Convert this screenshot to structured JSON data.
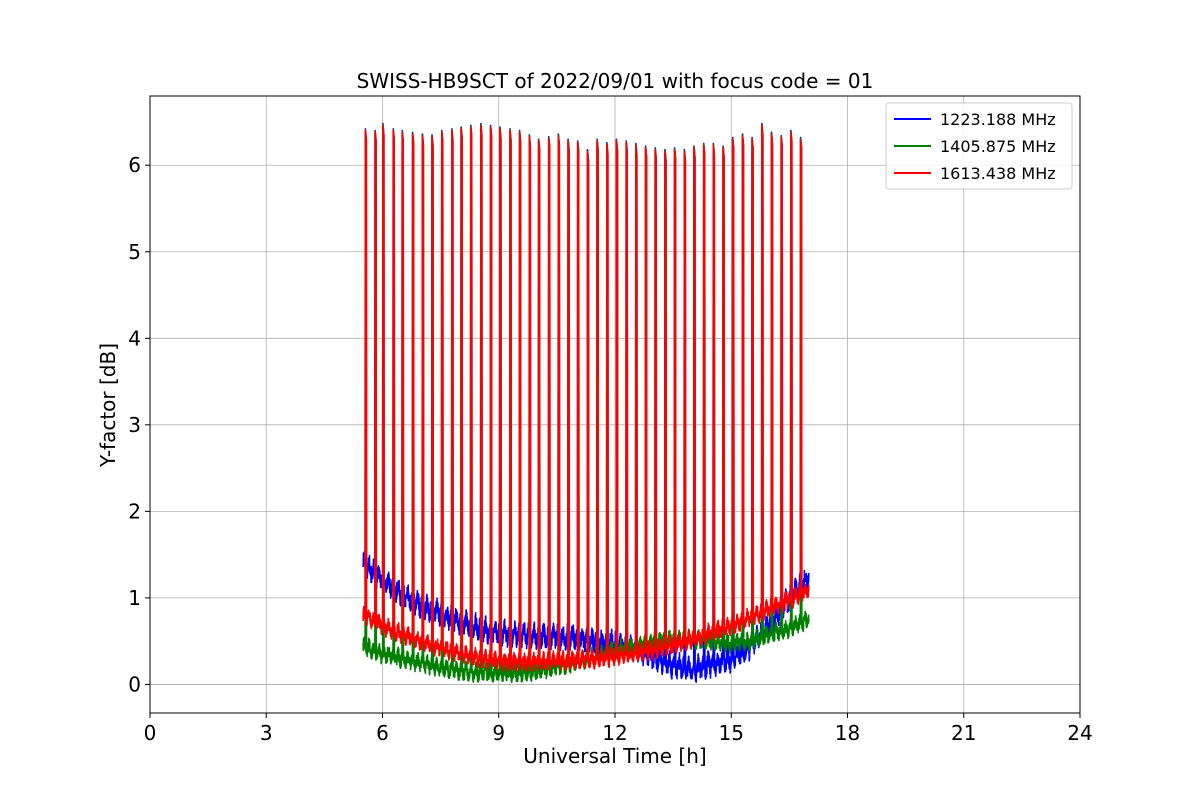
{
  "chart_data": {
    "type": "line",
    "title": "SWISS-HB9SCT of 2022/09/01 with focus code = 01",
    "xlabel": "Universal Time [h]",
    "ylabel": "Y-factor [dB]",
    "xlim": [
      0,
      24
    ],
    "ylim": [
      -0.33,
      6.8
    ],
    "xticks": [
      0,
      3,
      6,
      9,
      12,
      15,
      18,
      21,
      24
    ],
    "yticks": [
      0,
      1,
      2,
      3,
      4,
      5,
      6
    ],
    "xtick_labels": [
      "0",
      "3",
      "6",
      "9",
      "12",
      "15",
      "18",
      "21",
      "24"
    ],
    "ytick_labels": [
      "0",
      "1",
      "2",
      "3",
      "4",
      "5",
      "6"
    ],
    "grid": true,
    "legend_position": "top-right",
    "observation_window": [
      5.5,
      17.0
    ],
    "calibration_pulses": {
      "times": [
        5.55,
        5.8,
        6.0,
        6.27,
        6.5,
        6.77,
        7.02,
        7.27,
        7.52,
        7.78,
        8.02,
        8.27,
        8.53,
        8.78,
        9.02,
        9.28,
        9.53,
        9.78,
        10.02,
        10.28,
        10.53,
        10.78,
        11.03,
        11.28,
        11.53,
        11.78,
        12.03,
        12.28,
        12.53,
        12.78,
        13.03,
        13.28,
        13.53,
        13.78,
        14.03,
        14.28,
        14.53,
        14.78,
        15.03,
        15.28,
        15.53,
        15.78,
        16.03,
        16.28,
        16.53,
        16.78
      ],
      "peaks": [
        6.42,
        6.4,
        6.48,
        6.42,
        6.4,
        6.38,
        6.36,
        6.35,
        6.4,
        6.42,
        6.44,
        6.46,
        6.48,
        6.46,
        6.44,
        6.42,
        6.4,
        6.35,
        6.3,
        6.33,
        6.36,
        6.3,
        6.28,
        6.18,
        6.3,
        6.26,
        6.3,
        6.28,
        6.25,
        6.22,
        6.2,
        6.18,
        6.2,
        6.18,
        6.22,
        6.25,
        6.25,
        6.22,
        6.32,
        6.36,
        6.32,
        6.48,
        6.38,
        6.34,
        6.4,
        6.32
      ]
    },
    "series": [
      {
        "name": "1223.188 MHz",
        "color": "#0000ff",
        "x": [
          5.5,
          6.0,
          6.5,
          7.0,
          7.5,
          8.0,
          8.5,
          9.0,
          9.5,
          10.0,
          10.5,
          11.0,
          11.5,
          12.0,
          12.5,
          13.0,
          13.5,
          14.0,
          14.5,
          15.0,
          15.5,
          16.0,
          16.5,
          17.0
        ],
        "y": [
          1.4,
          1.22,
          1.05,
          0.92,
          0.82,
          0.72,
          0.65,
          0.6,
          0.58,
          0.57,
          0.56,
          0.54,
          0.5,
          0.48,
          0.42,
          0.32,
          0.22,
          0.18,
          0.24,
          0.3,
          0.44,
          0.7,
          1.0,
          1.25
        ],
        "noise": 0.15
      },
      {
        "name": "1405.875 MHz",
        "color": "#008000",
        "x": [
          5.5,
          6.0,
          6.5,
          7.0,
          7.5,
          8.0,
          8.5,
          9.0,
          9.5,
          10.0,
          10.5,
          11.0,
          11.5,
          12.0,
          12.5,
          13.0,
          13.5,
          14.0,
          14.5,
          15.0,
          15.5,
          16.0,
          16.5,
          17.0
        ],
        "y": [
          0.45,
          0.35,
          0.3,
          0.25,
          0.2,
          0.16,
          0.14,
          0.13,
          0.14,
          0.16,
          0.2,
          0.26,
          0.32,
          0.4,
          0.46,
          0.5,
          0.52,
          0.52,
          0.5,
          0.48,
          0.5,
          0.58,
          0.65,
          0.75
        ],
        "noise": 0.11
      },
      {
        "name": "1613.438 MHz",
        "color": "#ff0000",
        "x": [
          5.5,
          6.0,
          6.5,
          7.0,
          7.5,
          8.0,
          8.5,
          9.0,
          9.5,
          10.0,
          10.5,
          11.0,
          11.5,
          12.0,
          12.5,
          13.0,
          13.5,
          14.0,
          14.5,
          15.0,
          15.5,
          16.0,
          16.5,
          17.0
        ],
        "y": [
          0.8,
          0.68,
          0.58,
          0.5,
          0.42,
          0.36,
          0.3,
          0.27,
          0.26,
          0.26,
          0.27,
          0.28,
          0.3,
          0.32,
          0.36,
          0.4,
          0.46,
          0.52,
          0.6,
          0.68,
          0.78,
          0.88,
          0.98,
          1.1
        ],
        "noise": 0.11
      }
    ]
  }
}
